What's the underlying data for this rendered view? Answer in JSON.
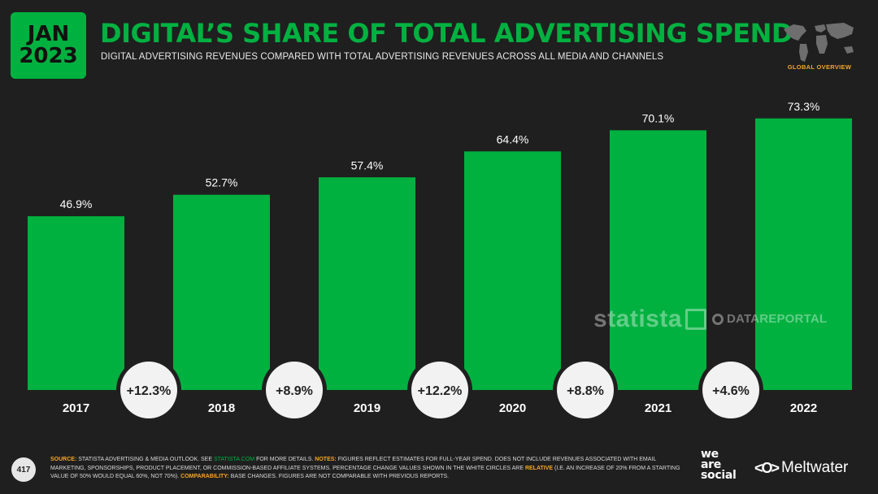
{
  "header": {
    "month": "JAN",
    "year": "2023",
    "title": "DIGITAL’S SHARE OF TOTAL ADVERTISING SPEND",
    "subtitle": "DIGITAL ADVERTISING REVENUES COMPARED WITH TOTAL ADVERTISING REVENUES ACROSS ALL MEDIA AND CHANNELS",
    "section_label": "GLOBAL OVERVIEW"
  },
  "chart_data": {
    "type": "bar",
    "title": "DIGITAL’S SHARE OF TOTAL ADVERTISING SPEND",
    "categories": [
      "2017",
      "2018",
      "2019",
      "2020",
      "2021",
      "2022"
    ],
    "values": [
      46.9,
      52.7,
      57.4,
      64.4,
      70.1,
      73.3
    ],
    "value_labels": [
      "46.9%",
      "52.7%",
      "57.4%",
      "64.4%",
      "70.1%",
      "73.3%"
    ],
    "changes": [
      "+12.3%",
      "+8.9%",
      "+12.2%",
      "+8.8%",
      "+4.6%"
    ],
    "xlabel": "",
    "ylabel": "",
    "ylim": [
      0,
      100
    ],
    "grid": false,
    "bar_color": "#00b140"
  },
  "watermarks": {
    "statista": "statista",
    "datareportal": "DATAREPORTAL"
  },
  "footer": {
    "page_number": "417",
    "source_label": "SOURCE:",
    "source_text": " STATISTA ADVERTISING & MEDIA OUTLOOK. SEE ",
    "source_link": "STATISTA.COM",
    "source_text2": " FOR MORE DETAILS. ",
    "notes_label": "NOTES:",
    "notes_text": " FIGURES REFLECT ESTIMATES FOR FULL-YEAR SPEND. DOES NOT INCLUDE REVENUES ASSOCIATED WITH EMAIL MARKETING, SPONSORSHIPS, PRODUCT PLACEMENT, OR COMMISSION-BASED AFFILIATE SYSTEMS. PERCENTAGE CHANGE VALUES SHOWN IN THE WHITE CIRCLES ARE ",
    "notes_relative": "RELATIVE",
    "notes_text2": " (I.E. AN INCREASE OF 20% FROM A STARTING VALUE OF 50% WOULD EQUAL 60%, NOT 70%). ",
    "comparability_label": "COMPARABILITY:",
    "comparability_text": " BASE CHANGES. FIGURES ARE NOT COMPARABLE WITH PREVIOUS REPORTS.",
    "brand_we": "we",
    "brand_are": "are",
    "brand_social": "social",
    "brand_meltwater": "Meltwater"
  }
}
